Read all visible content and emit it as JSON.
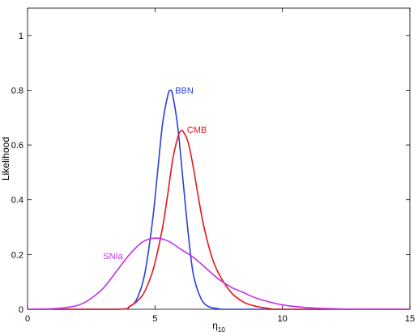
{
  "chart_data": {
    "type": "line",
    "title": "",
    "xlabel": "η",
    "xlabel_sub": "10",
    "ylabel": "Likelihood",
    "xlim": [
      0,
      15
    ],
    "ylim": [
      0,
      1.1
    ],
    "xticks": [
      "0",
      "5",
      "10",
      "15"
    ],
    "yticks": [
      "0",
      "0.2",
      "0.4",
      "0.6",
      "0.8",
      "1"
    ],
    "grid": false,
    "legend": "none (labels placed next to curves)",
    "series": [
      {
        "name": "BBN",
        "color": "#2a3fde",
        "x": [
          3.5,
          4.0,
          4.3,
          4.6,
          4.9,
          5.1,
          5.3,
          5.5,
          5.6,
          5.7,
          5.9,
          6.1,
          6.3,
          6.5,
          6.8,
          7.1,
          7.5,
          8.0
        ],
        "y": [
          0.0,
          0.01,
          0.04,
          0.13,
          0.32,
          0.5,
          0.68,
          0.78,
          0.8,
          0.78,
          0.66,
          0.47,
          0.28,
          0.13,
          0.04,
          0.01,
          0.002,
          0.0
        ]
      },
      {
        "name": "CMB",
        "color": "#e8161b",
        "x": [
          3.5,
          4.0,
          4.5,
          4.8,
          5.0,
          5.3,
          5.5,
          5.7,
          5.9,
          6.0,
          6.1,
          6.3,
          6.5,
          6.7,
          6.9,
          7.2,
          7.5,
          8.0,
          8.5,
          9.0,
          9.5,
          10.0
        ],
        "y": [
          0.0,
          0.01,
          0.05,
          0.11,
          0.17,
          0.3,
          0.42,
          0.55,
          0.63,
          0.65,
          0.65,
          0.61,
          0.52,
          0.41,
          0.31,
          0.2,
          0.13,
          0.06,
          0.025,
          0.01,
          0.003,
          0.0
        ]
      },
      {
        "name": "SNIa",
        "color": "#c133e6",
        "x": [
          0.0,
          1.0,
          1.5,
          2.0,
          2.5,
          3.0,
          3.5,
          4.0,
          4.5,
          5.0,
          5.5,
          6.0,
          6.5,
          7.0,
          7.5,
          8.0,
          8.5,
          9.0,
          10.0,
          11.0,
          12.0,
          13.0,
          15.0
        ],
        "y": [
          0.0,
          0.002,
          0.006,
          0.015,
          0.04,
          0.08,
          0.14,
          0.2,
          0.245,
          0.26,
          0.25,
          0.22,
          0.19,
          0.15,
          0.11,
          0.08,
          0.06,
          0.04,
          0.016,
          0.006,
          0.002,
          0.0,
          0.0
        ]
      }
    ]
  }
}
